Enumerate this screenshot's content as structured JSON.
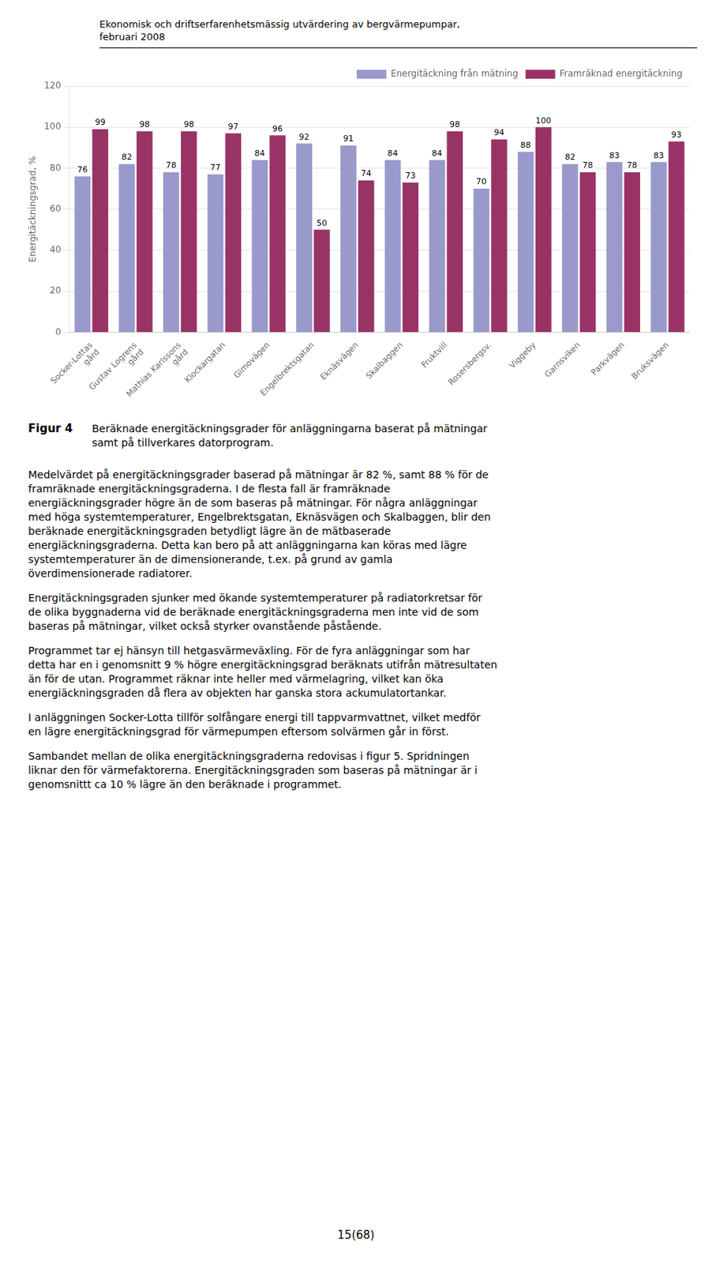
{
  "chart_data": {
    "type": "bar",
    "title": "Figur 4",
    "subtitle": "Beräknade energitäckningsgrader för anläggningarna baserat på mätningar\nsamt på tillverkares datorprogram.",
    "categories": [
      "Socker-Lottas\ngård",
      "Gustav Logrens\ngård",
      "Mathias Karlssons\ngård",
      "Klockargatan",
      "Gimovägen",
      "Engelbrektsgatan",
      "Eknäsvägen",
      "Skalbaggen",
      "Fruktvill",
      "Rosersbergsv.",
      "Viggeby",
      "Garnsviken",
      "Parkvägen",
      "Bruksvägen"
    ],
    "series": [
      {
        "name": "Energitäckning från mätning",
        "color": "#9999CC",
        "values": [
          76,
          82,
          78,
          77,
          84,
          92,
          91,
          84,
          84,
          70,
          88,
          82,
          83,
          83
        ]
      },
      {
        "name": "Framräknad energitäckning",
        "color": "#993366",
        "values": [
          99,
          98,
          98,
          97,
          96,
          50,
          74,
          73,
          98,
          94,
          100,
          78,
          78,
          93
        ]
      }
    ],
    "ylabel": "Energitäckningsgrad, %",
    "ylim": [
      0,
      120
    ],
    "yticks": [
      0,
      20,
      40,
      60,
      80,
      100,
      120
    ],
    "grid": true,
    "legend": "upper right",
    "data_labels": true,
    "annotations": [
      "Ekonomisk och driftserfarenhetsmässig utvärdering av bergvärmepumpar,",
      "februari 2008",
      "Medelvärdet på energitäckningsgrader baserad på mätningar är 82 %, samt 88 % för de\nframräknade energitäckningsgraderna. I de flesta fall är framräknade\nenergiäckningsgrader högre än de som baseras på mätningar. För några anläggningar\nmed höga systemtemperaturer, Engelbrektsgatan, Eknäsvägen och Skalbaggen, blir den\nberäknade energitäckningsgraden betydligt lägre än de mätbaserade\nenergiäckningsgraderna. Detta kan bero på att anläggningarna kan köras med lägre\nsystemtemperaturer än de dimensionerande, t.ex. på grund av gamla\növerdimensionerade radiatorer.",
      "Energitäckningsgraden sjunker med ökande systemtemperaturer på radiatorkretsar för\nde olika byggnaderna vid de beräknade energitäckningsgraderna men inte vid de som\nbaseras på mätningar, vilket också styrker ovanstående påstående.",
      "Programmet tar ej hänsyn till hetgasvärmeväxling. För de fyra anläggningar som har\ndetta har en i genomsnitt 9 % högre energitäckningsgrad beräknats utifrån mätresultaten\nän för de utan. Programmet räknar inte heller med värmelagring, vilket kan öka\nenergiäckningsgraden då flera av objekten har ganska stora ackumulatortankar.",
      "I anläggningen Socker-Lotta tillför solfångare energi till tappvarmvattnet, vilket medför\nen lägre energitäckningsgrad för värmepumpen eftersom solvärmen går in först.",
      "Sambandet mellan de olika energitäckningsgraderna redovisas i figur 5. Spridningen\nliknar den för värmefaktorerna. Energitäckningsgraden som baseras på mätningar är i\ngenomsnittt ca 10 % lägre än den beräknade i programmet.",
      "15(68)"
    ]
  }
}
